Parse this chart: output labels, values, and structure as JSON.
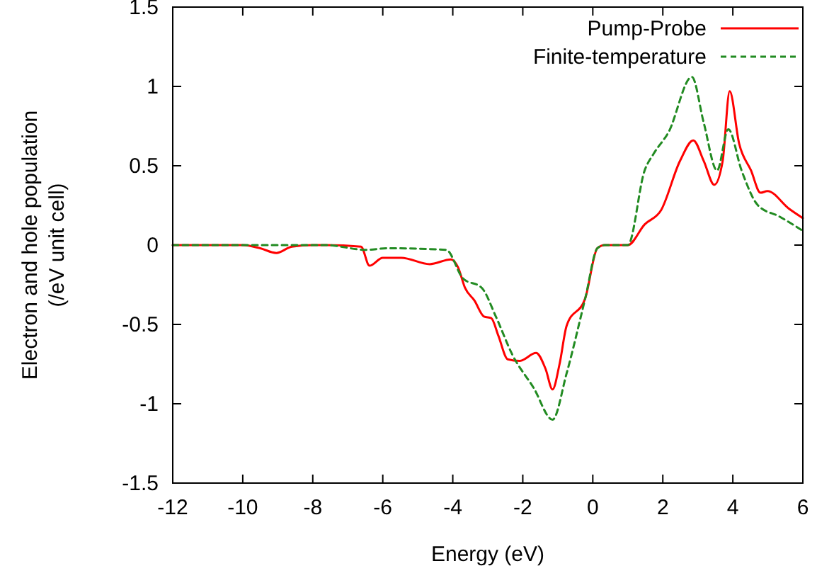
{
  "chart_data": {
    "type": "line",
    "xlabel": "Energy (eV)",
    "ylabel": "Electron and hole population\n(/eV unit cell)",
    "xlim": [
      -12,
      6
    ],
    "xticks": [
      -12,
      -10,
      -8,
      -6,
      -4,
      -2,
      0,
      2,
      4,
      6
    ],
    "ylim": [
      -1.5,
      1.5
    ],
    "yticks": [
      -1.5,
      -1,
      -0.5,
      0,
      0.5,
      1,
      1.5
    ],
    "grid": false,
    "legend": "top right",
    "series": [
      {
        "name": "Pump-Probe",
        "color": "#ff0000",
        "line_style": "solid",
        "x": [
          -12,
          -10,
          -9.5,
          -9.04,
          -8.6,
          -8,
          -7.63,
          -6.62,
          -6.38,
          -6,
          -5.47,
          -4.66,
          -4.05,
          -3.85,
          -3.65,
          -3.38,
          -3.11,
          -2.9,
          -2.7,
          -2.43,
          -2.09,
          -1.62,
          -1.35,
          -1.15,
          -0.95,
          -0.75,
          -0.21,
          0.13,
          0.34,
          1,
          1.48,
          1.95,
          2.49,
          2.87,
          3.17,
          3.47,
          3.71,
          3.91,
          4.18,
          4.52,
          4.79,
          4.99,
          5.6,
          6
        ],
        "values": [
          0,
          0,
          -0.02,
          -0.05,
          -0.01,
          0,
          0,
          -0.01,
          -0.13,
          -0.08,
          -0.08,
          -0.12,
          -0.09,
          -0.14,
          -0.27,
          -0.35,
          -0.45,
          -0.46,
          -0.57,
          -0.72,
          -0.73,
          -0.68,
          -0.78,
          -0.91,
          -0.75,
          -0.51,
          -0.33,
          -0.02,
          0,
          0,
          0.13,
          0.22,
          0.53,
          0.66,
          0.53,
          0.38,
          0.53,
          0.97,
          0.64,
          0.47,
          0.33,
          0.34,
          0.23,
          0.17
        ]
      },
      {
        "name": "Finite-temperature",
        "color": "#228b22",
        "line_style": "dashed",
        "x": [
          -12,
          -7.63,
          -6.48,
          -5.87,
          -4.19,
          -3.71,
          -3.17,
          -2.77,
          -2.3,
          -1.69,
          -1.15,
          -0.75,
          -0.21,
          0.13,
          0.34,
          1,
          1.48,
          1.75,
          2.16,
          2.83,
          3.17,
          3.55,
          3.87,
          4.25,
          4.72,
          5.33,
          6
        ],
        "values": [
          0,
          0,
          -0.03,
          -0.02,
          -0.03,
          -0.21,
          -0.27,
          -0.45,
          -0.69,
          -0.9,
          -1.1,
          -0.81,
          -0.33,
          -0.02,
          0,
          0,
          0.47,
          0.58,
          0.71,
          1.06,
          0.77,
          0.47,
          0.73,
          0.47,
          0.25,
          0.18,
          0.09
        ]
      }
    ]
  }
}
